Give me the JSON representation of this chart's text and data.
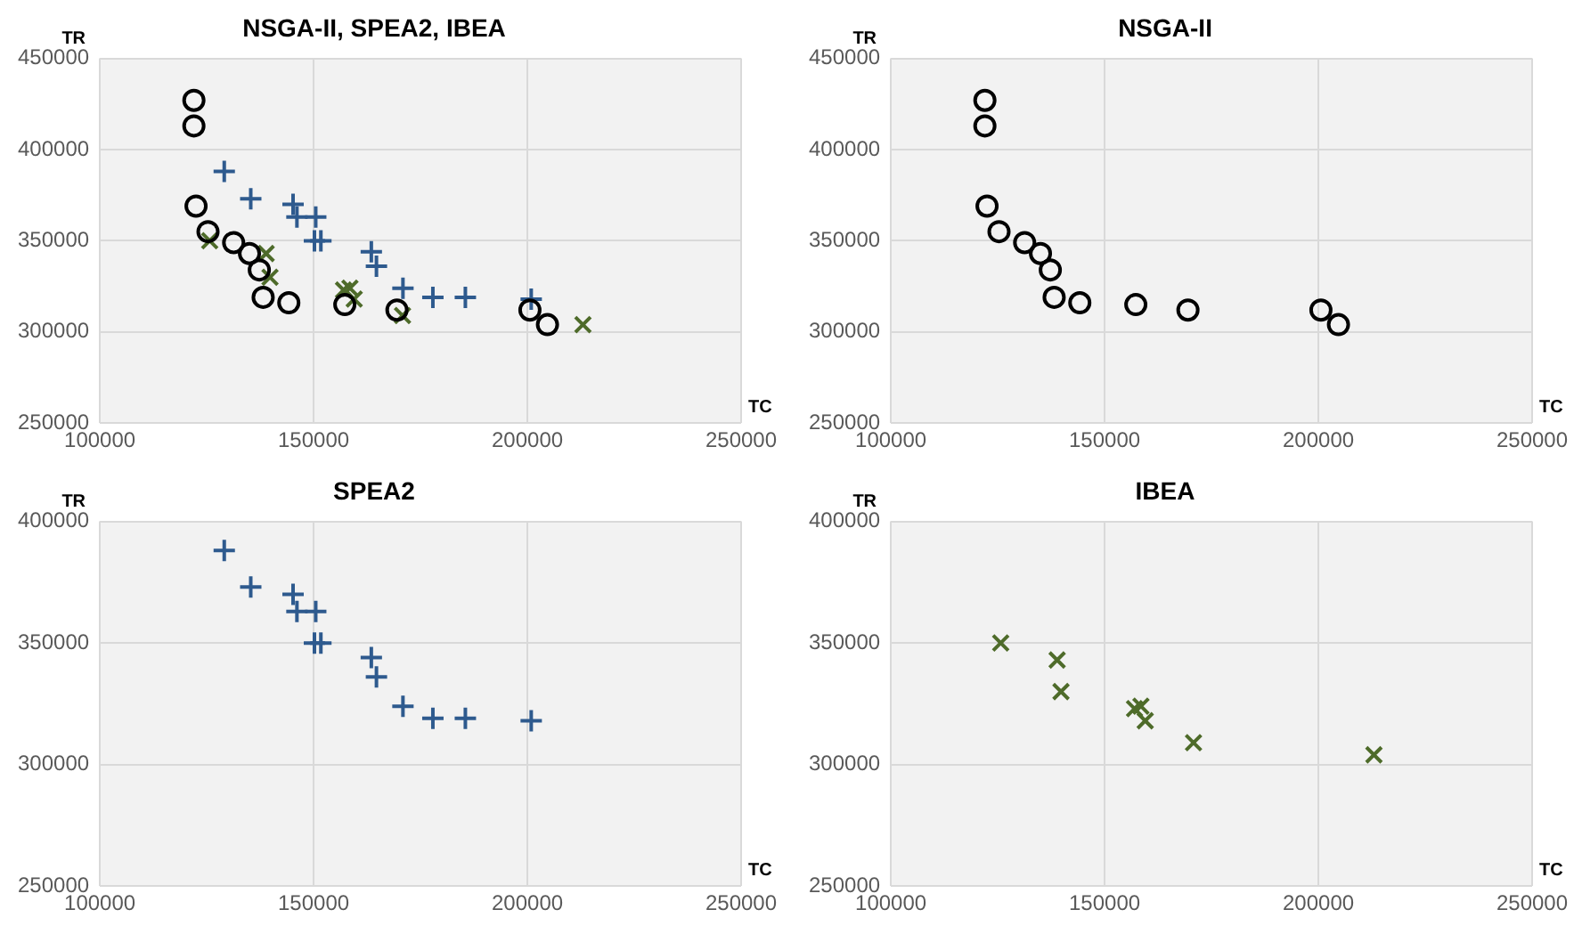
{
  "chart_data": [
    {
      "type": "scatter",
      "title": "NSGA-II, SPEA2, IBEA",
      "xlabel": "TC",
      "ylabel": "TR",
      "xlim": [
        100000,
        250000
      ],
      "xticks": [
        100000,
        150000,
        200000,
        250000
      ],
      "ylim": [
        250000,
        450000
      ],
      "yticks": [
        250000,
        300000,
        350000,
        400000,
        450000
      ],
      "grid": true,
      "legend": false,
      "series": [
        {
          "color": "#000000",
          "marker": "circle",
          "x": [
            122000,
            122000,
            122500,
            125300,
            131300,
            135000,
            137300,
            138200,
            144200,
            157300,
            169500,
            200600,
            204700
          ],
          "values": [
            427000,
            413000,
            369000,
            355000,
            349000,
            343000,
            334000,
            319000,
            316000,
            315000,
            312000,
            312000,
            304000
          ]
        },
        {
          "color": "#2e5a8e",
          "marker": "cross",
          "x": [
            129100,
            135300,
            145200,
            146100,
            150500,
            150200,
            151700,
            163500,
            164700,
            170900,
            177900,
            185500,
            200900
          ],
          "values": [
            388000,
            373000,
            370000,
            363000,
            363000,
            350000,
            350000,
            344000,
            336000,
            324000,
            319000,
            319000,
            318000
          ]
        },
        {
          "color": "#4e6b2a",
          "marker": "x",
          "x": [
            125700,
            138900,
            139800,
            157000,
            158500,
            159500,
            170800,
            213000
          ],
          "values": [
            350000,
            343000,
            330000,
            323000,
            324000,
            318000,
            309000,
            304000
          ]
        }
      ]
    },
    {
      "type": "scatter",
      "title": "NSGA-II",
      "xlabel": "TC",
      "ylabel": "TR",
      "xlim": [
        100000,
        250000
      ],
      "xticks": [
        100000,
        150000,
        200000,
        250000
      ],
      "ylim": [
        250000,
        450000
      ],
      "yticks": [
        250000,
        300000,
        350000,
        400000,
        450000
      ],
      "grid": true,
      "legend": false,
      "series": [
        {
          "color": "#000000",
          "marker": "circle",
          "x": [
            122000,
            122000,
            122500,
            125300,
            131300,
            135000,
            137300,
            138200,
            144200,
            157300,
            169500,
            200600,
            204700
          ],
          "values": [
            427000,
            413000,
            369000,
            355000,
            349000,
            343000,
            334000,
            319000,
            316000,
            315000,
            312000,
            312000,
            304000
          ]
        }
      ]
    },
    {
      "type": "scatter",
      "title": "SPEA2",
      "xlabel": "TC",
      "ylabel": "TR",
      "xlim": [
        100000,
        250000
      ],
      "xticks": [
        100000,
        150000,
        200000,
        250000
      ],
      "ylim": [
        250000,
        400000
      ],
      "yticks": [
        250000,
        300000,
        350000,
        400000
      ],
      "grid": true,
      "legend": false,
      "series": [
        {
          "color": "#2e5a8e",
          "marker": "cross",
          "x": [
            129100,
            135300,
            145200,
            146100,
            150500,
            150200,
            151700,
            163500,
            164700,
            170900,
            177900,
            185500,
            200900
          ],
          "values": [
            388000,
            373000,
            370000,
            363000,
            363000,
            350000,
            350000,
            344000,
            336000,
            324000,
            319000,
            319000,
            318000
          ]
        }
      ]
    },
    {
      "type": "scatter",
      "title": "IBEA",
      "xlabel": "TC",
      "ylabel": "TR",
      "xlim": [
        100000,
        250000
      ],
      "xticks": [
        100000,
        150000,
        200000,
        250000
      ],
      "ylim": [
        250000,
        400000
      ],
      "yticks": [
        250000,
        300000,
        350000,
        400000
      ],
      "grid": true,
      "legend": false,
      "series": [
        {
          "color": "#4e6b2a",
          "marker": "x",
          "x": [
            125700,
            138900,
            139800,
            157000,
            158500,
            159500,
            170800,
            213000
          ],
          "values": [
            350000,
            343000,
            330000,
            323000,
            324000,
            318000,
            309000,
            304000
          ]
        }
      ]
    }
  ]
}
